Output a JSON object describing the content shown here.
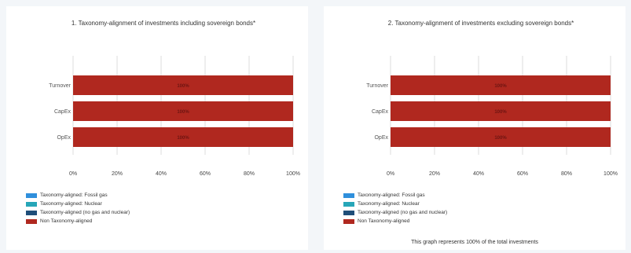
{
  "colors": {
    "fossil_gas": "#2f8fdc",
    "nuclear": "#27a6b8",
    "no_gas_nuclear": "#1f4e79",
    "non_aligned": "#b0281f",
    "data_label": "#6e1512",
    "grid": "#dddddd"
  },
  "legend": [
    {
      "label": "Taxonomy-aligned: Fossil gas",
      "color": "#2f8fdc"
    },
    {
      "label": "Taxonomy-aligned: Nuclear",
      "color": "#27a6b8"
    },
    {
      "label": "Taxonomy-aligned (no gas and nuclear)",
      "color": "#1f4e79"
    },
    {
      "label": "Non Taxonomy-aligned",
      "color": "#b0281f"
    }
  ],
  "footnote": "This graph represents  100% of the total investments",
  "chart_data": [
    {
      "type": "bar",
      "orientation": "horizontal",
      "stacked": true,
      "title": "1. Taxonomy-alignment of investments including sovereign bonds*",
      "categories": [
        "Turnover",
        "CapEx",
        "OpEx"
      ],
      "series": [
        {
          "name": "Taxonomy-aligned: Fossil gas",
          "values": [
            0,
            0,
            0
          ]
        },
        {
          "name": "Taxonomy-aligned: Nuclear",
          "values": [
            0,
            0,
            0
          ]
        },
        {
          "name": "Taxonomy-aligned (no gas and nuclear)",
          "values": [
            0,
            0,
            0
          ]
        },
        {
          "name": "Non Taxonomy-aligned",
          "values": [
            100,
            100,
            100
          ]
        }
      ],
      "data_labels": [
        "100%",
        "100%",
        "100%"
      ],
      "xlim": [
        0,
        100
      ],
      "xticks": [
        "0%",
        "20%",
        "40%",
        "60%",
        "80%",
        "100%"
      ],
      "grid": true,
      "legend_position": "bottom-left"
    },
    {
      "type": "bar",
      "orientation": "horizontal",
      "stacked": true,
      "title": "2. Taxonomy-alignment of investments excluding sovereign bonds*",
      "categories": [
        "Turnover",
        "CapEx",
        "OpEx"
      ],
      "series": [
        {
          "name": "Taxonomy-aligned: Fossil gas",
          "values": [
            0,
            0,
            0
          ]
        },
        {
          "name": "Taxonomy-aligned: Nuclear",
          "values": [
            0,
            0,
            0
          ]
        },
        {
          "name": "Taxonomy-aligned (no gas and nuclear)",
          "values": [
            0,
            0,
            0
          ]
        },
        {
          "name": "Non Taxonomy-aligned",
          "values": [
            100,
            100,
            100
          ]
        }
      ],
      "data_labels": [
        "100%",
        "100%",
        "100%"
      ],
      "xlim": [
        0,
        100
      ],
      "xticks": [
        "0%",
        "20%",
        "40%",
        "60%",
        "80%",
        "100%"
      ],
      "grid": true,
      "legend_position": "bottom-left"
    }
  ]
}
